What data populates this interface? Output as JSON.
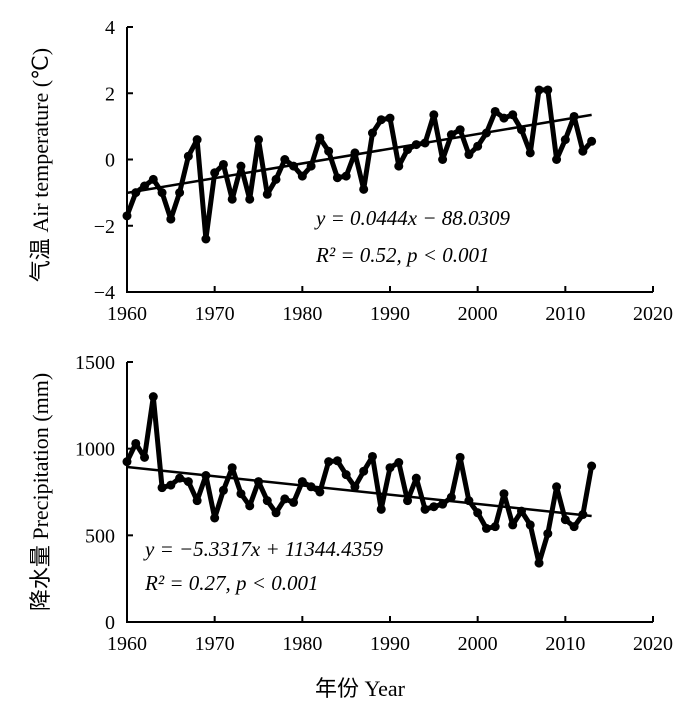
{
  "chart_data": [
    {
      "type": "line",
      "ylabel": "气温 Air temperature (℃)",
      "xlabel": "",
      "xlim": [
        1960,
        2020
      ],
      "ylim": [
        -4,
        4
      ],
      "x_ticks": [
        "1960",
        "1970",
        "1980",
        "1990",
        "2000",
        "2010",
        "2020"
      ],
      "y_ticks": [
        "4",
        "2",
        "0",
        "−2",
        "−4"
      ],
      "equation": "y = 0.0444x − 88.0309",
      "stats": "R² = 0.52, p < 0.001",
      "trend": {
        "slope": 0.0444,
        "intercept": -88.0309
      },
      "x": [
        1960,
        1961,
        1962,
        1963,
        1964,
        1965,
        1966,
        1967,
        1968,
        1969,
        1970,
        1971,
        1972,
        1973,
        1974,
        1975,
        1976,
        1977,
        1978,
        1979,
        1980,
        1981,
        1982,
        1983,
        1984,
        1985,
        1986,
        1987,
        1988,
        1989,
        1990,
        1991,
        1992,
        1993,
        1994,
        1995,
        1996,
        1997,
        1998,
        1999,
        2000,
        2001,
        2002,
        2003,
        2004,
        2005,
        2006,
        2007,
        2008,
        2009,
        2010,
        2011,
        2012,
        2013
      ],
      "series": [
        {
          "values": [
            -1.7,
            -1.0,
            -0.8,
            -0.6,
            -1.0,
            -1.8,
            -1.0,
            0.1,
            0.6,
            -2.4,
            -0.4,
            -0.15,
            -1.2,
            -0.2,
            -1.2,
            0.6,
            -1.05,
            -0.6,
            0.0,
            -0.2,
            -0.5,
            -0.2,
            0.65,
            0.25,
            -0.55,
            -0.5,
            0.2,
            -0.9,
            0.8,
            1.2,
            1.25,
            -0.2,
            0.3,
            0.45,
            0.5,
            1.35,
            0.0,
            0.75,
            0.9,
            0.15,
            0.4,
            0.8,
            1.45,
            1.25,
            1.35,
            0.9,
            0.2,
            2.1,
            2.1,
            0.0,
            0.6,
            1.3,
            0.25,
            0.55
          ]
        }
      ]
    },
    {
      "type": "line",
      "ylabel": "降水量 Precipitation (mm)",
      "xlabel": "年份 Year",
      "xlim": [
        1960,
        2020
      ],
      "ylim": [
        0,
        1500
      ],
      "x_ticks": [
        "1960",
        "1970",
        "1980",
        "1990",
        "2000",
        "2010",
        "2020"
      ],
      "y_ticks": [
        "1500",
        "1000",
        "500",
        "0"
      ],
      "equation": "y = −5.3317x + 11344.4359",
      "stats": "R² = 0.27, p < 0.001",
      "trend": {
        "slope": -5.3317,
        "intercept": 11344.4359
      },
      "x": [
        1960,
        1961,
        1962,
        1963,
        1964,
        1965,
        1966,
        1967,
        1968,
        1969,
        1970,
        1971,
        1972,
        1973,
        1974,
        1975,
        1976,
        1977,
        1978,
        1979,
        1980,
        1981,
        1982,
        1983,
        1984,
        1985,
        1986,
        1987,
        1988,
        1989,
        1990,
        1991,
        1992,
        1993,
        1994,
        1995,
        1996,
        1997,
        1998,
        1999,
        2000,
        2001,
        2002,
        2003,
        2004,
        2005,
        2006,
        2007,
        2008,
        2009,
        2010,
        2011,
        2012,
        2013
      ],
      "series": [
        {
          "values": [
            925,
            1030,
            950,
            1300,
            775,
            790,
            830,
            810,
            700,
            845,
            600,
            760,
            890,
            740,
            670,
            810,
            700,
            630,
            710,
            690,
            810,
            780,
            750,
            925,
            930,
            850,
            780,
            870,
            955,
            650,
            890,
            920,
            700,
            830,
            650,
            665,
            680,
            720,
            950,
            700,
            630,
            540,
            550,
            740,
            560,
            640,
            560,
            340,
            510,
            780,
            590,
            550,
            620,
            900
          ]
        }
      ]
    }
  ]
}
